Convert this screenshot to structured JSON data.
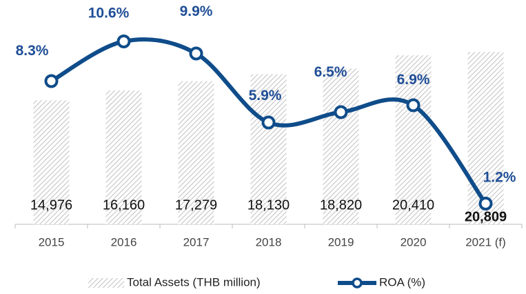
{
  "chart_data": {
    "type": "bar-line",
    "categories": [
      "2015",
      "2016",
      "2017",
      "2018",
      "2019",
      "2020",
      "2021 (f)"
    ],
    "series": [
      {
        "name": "Total Assets (THB million)",
        "type": "bar",
        "color": "#c8c8c8",
        "values": [
          14976,
          16160,
          17279,
          18130,
          18820,
          20410,
          20809
        ],
        "value_labels": [
          "14,976",
          "16,160",
          "17,279",
          "18,130",
          "18,820",
          "20,410",
          "20,809"
        ]
      },
      {
        "name": "ROA (%)",
        "type": "line",
        "axis": "y2",
        "color": "#0f4c8a",
        "values": [
          8.3,
          10.6,
          9.9,
          5.9,
          6.5,
          6.9,
          1.2
        ],
        "value_labels": [
          "8.3%",
          "10.6%",
          "9.9%",
          "5.9%",
          "6.5%",
          "6.9%",
          "1.2%"
        ]
      }
    ],
    "ylim": [
      0,
      25000
    ],
    "y2lim": [
      0,
      12
    ],
    "legend": "bottom"
  }
}
